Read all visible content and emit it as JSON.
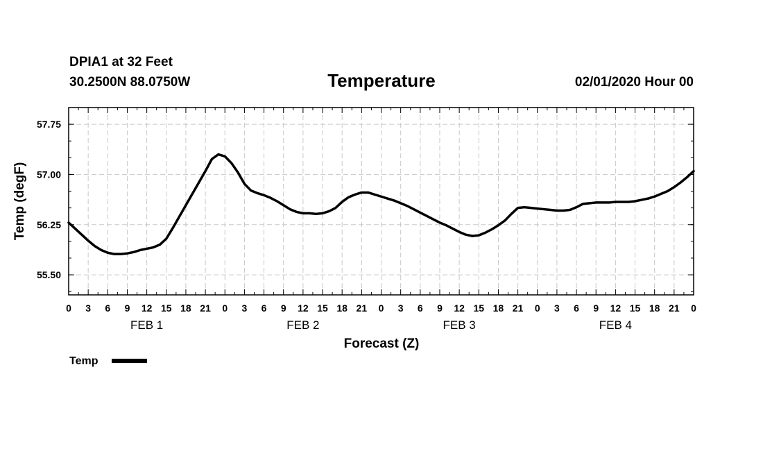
{
  "header": {
    "station": "DPIA1 at 32 Feet",
    "coords": "30.2500N 88.0750W",
    "title": "Temperature",
    "datetime": "02/01/2020 Hour 00"
  },
  "legend": {
    "label": "Temp"
  },
  "chart_data": {
    "type": "line",
    "title": "Temperature",
    "xlabel": "Forecast (Z)",
    "ylabel": "Temp (degF)",
    "ylim": [
      55.2,
      58.0
    ],
    "xlim": [
      0,
      96
    ],
    "grid": true,
    "y_ticks": [
      "55.50",
      "56.25",
      "57.00",
      "57.75"
    ],
    "x_tick_labels": [
      "0",
      "3",
      "6",
      "9",
      "12",
      "15",
      "18",
      "21",
      "0",
      "3",
      "6",
      "9",
      "12",
      "15",
      "18",
      "21",
      "0",
      "3",
      "6",
      "9",
      "12",
      "15",
      "18",
      "21",
      "0",
      "3",
      "6",
      "9",
      "12",
      "15",
      "18",
      "21",
      "0"
    ],
    "day_labels": [
      "FEB 1",
      "FEB 2",
      "FEB 3",
      "FEB 4"
    ],
    "series": [
      {
        "name": "Temp",
        "color": "#000000",
        "x": [
          0,
          1,
          2,
          3,
          4,
          5,
          6,
          7,
          8,
          9,
          10,
          11,
          12,
          13,
          14,
          15,
          16,
          17,
          18,
          19,
          20,
          21,
          22,
          23,
          24,
          25,
          26,
          27,
          28,
          29,
          30,
          31,
          32,
          33,
          34,
          35,
          36,
          37,
          38,
          39,
          40,
          41,
          42,
          43,
          44,
          45,
          46,
          47,
          48,
          49,
          50,
          51,
          52,
          53,
          54,
          55,
          56,
          57,
          58,
          59,
          60,
          61,
          62,
          63,
          64,
          65,
          66,
          67,
          68,
          69,
          70,
          71,
          72,
          73,
          74,
          75,
          76,
          77,
          78,
          79,
          80,
          81,
          82,
          83,
          84,
          85,
          86,
          87,
          88,
          89,
          90,
          91,
          92,
          93,
          94,
          95,
          96
        ],
        "values": [
          56.28,
          56.19,
          56.1,
          56.01,
          55.93,
          55.87,
          55.83,
          55.81,
          55.81,
          55.82,
          55.84,
          55.87,
          55.89,
          55.91,
          55.95,
          56.04,
          56.2,
          56.37,
          56.54,
          56.71,
          56.88,
          57.05,
          57.23,
          57.3,
          57.27,
          57.17,
          57.03,
          56.86,
          56.76,
          56.72,
          56.69,
          56.65,
          56.6,
          56.54,
          56.48,
          56.44,
          56.42,
          56.42,
          56.41,
          56.42,
          56.45,
          56.5,
          56.59,
          56.66,
          56.7,
          56.73,
          56.73,
          56.7,
          56.67,
          56.64,
          56.61,
          56.57,
          56.53,
          56.48,
          56.43,
          56.38,
          56.33,
          56.28,
          56.24,
          56.19,
          56.14,
          56.1,
          56.08,
          56.09,
          56.13,
          56.18,
          56.24,
          56.31,
          56.41,
          56.5,
          56.51,
          56.5,
          56.49,
          56.48,
          56.47,
          56.46,
          56.46,
          56.47,
          56.51,
          56.56,
          56.57,
          56.58,
          56.58,
          56.58,
          56.59,
          56.59,
          56.59,
          56.6,
          56.62,
          56.64,
          56.67,
          56.71,
          56.75,
          56.81,
          56.88,
          56.96,
          57.05
        ]
      }
    ]
  }
}
